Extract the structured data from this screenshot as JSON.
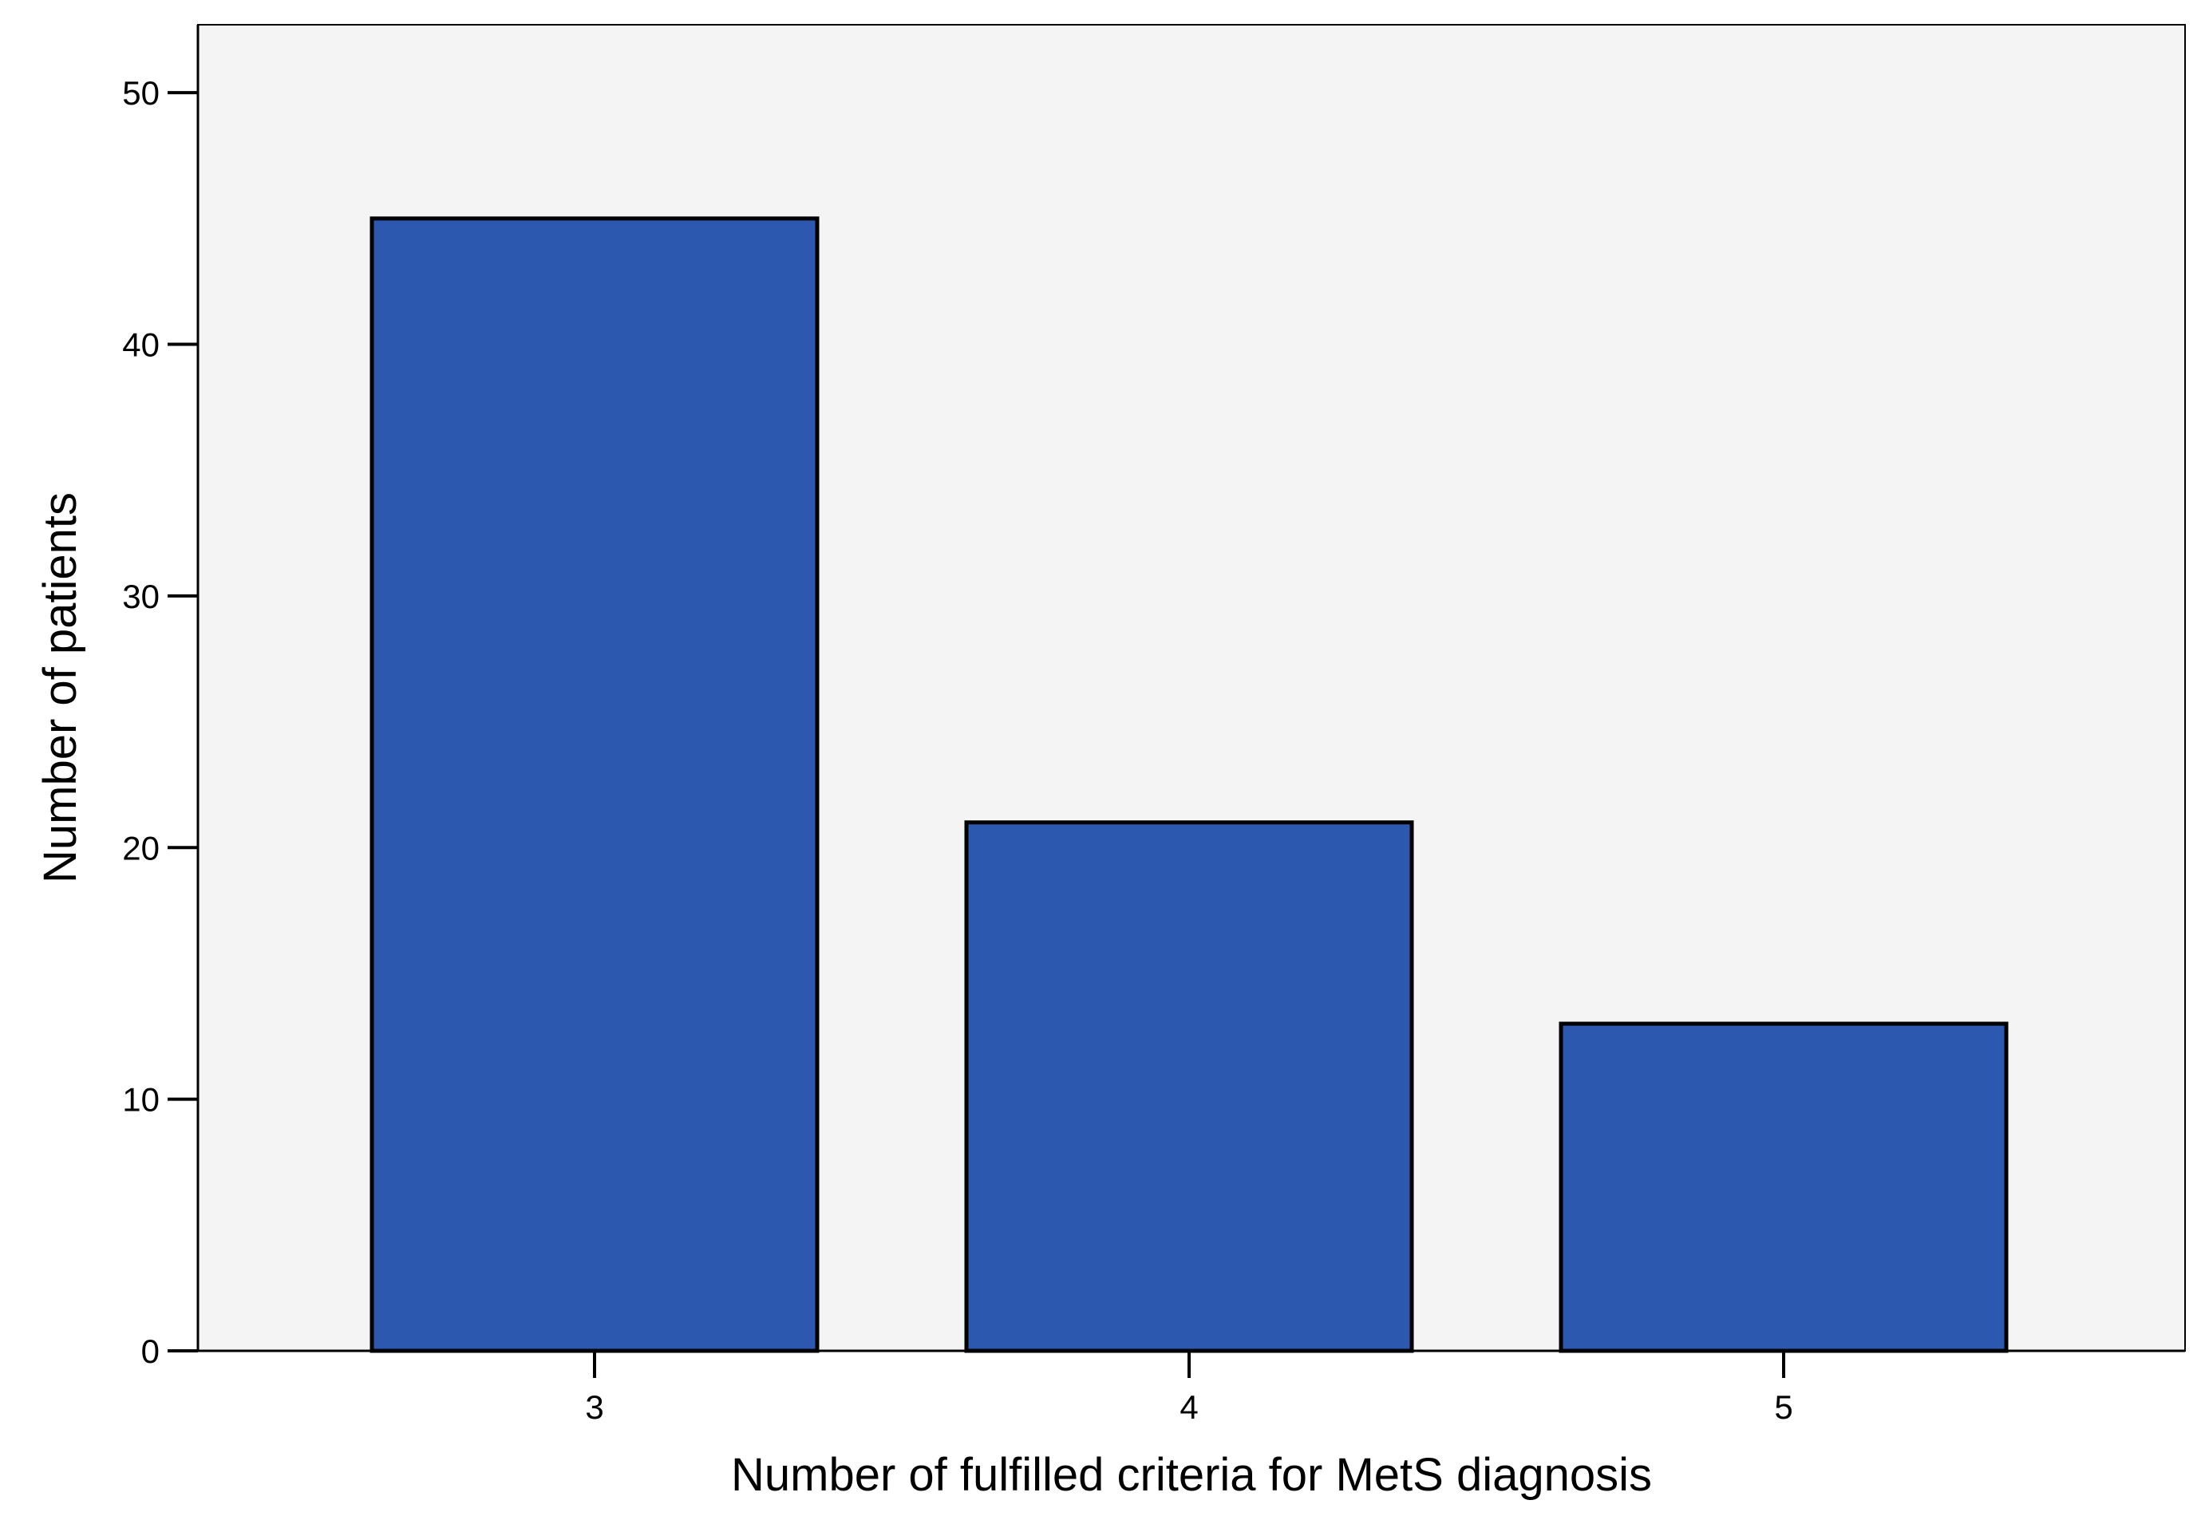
{
  "chart_data": {
    "type": "bar",
    "title": "",
    "xlabel": "Number of fulfilled criteria for MetS diagnosis",
    "ylabel": "Number of patients",
    "categories": [
      "3",
      "4",
      "5"
    ],
    "values": [
      45,
      21,
      13
    ],
    "ylim": [
      0,
      52.7
    ],
    "yticks": [
      0,
      10,
      20,
      30,
      40,
      50
    ],
    "ytick_labels": [
      "0",
      "10",
      "20",
      "30",
      "40",
      "50"
    ],
    "grid": false,
    "legend": "none",
    "colors": {
      "bar_fill": "#2c58b0",
      "bar_stroke": "#000000",
      "plot_background": "#f4f4f4",
      "axis": "#000000"
    }
  }
}
